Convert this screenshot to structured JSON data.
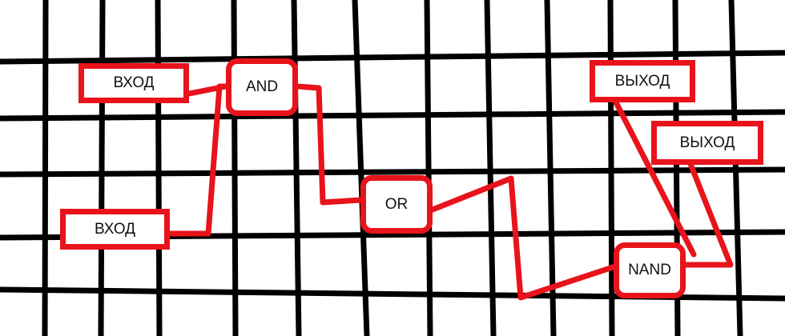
{
  "colors": {
    "grid": "#000000",
    "wire": "#e8131b",
    "node_border": "#e8131b",
    "node_fill": "#ffffff",
    "text": "#111111"
  },
  "nodes": {
    "input_1": {
      "label": "ВХОД"
    },
    "input_2": {
      "label": "ВХОД"
    },
    "gate_and": {
      "label": "AND"
    },
    "gate_or": {
      "label": "OR"
    },
    "gate_nand": {
      "label": "NAND"
    },
    "output_1": {
      "label": "ВЫХОД"
    },
    "output_2": {
      "label": "ВЫХОД"
    }
  }
}
